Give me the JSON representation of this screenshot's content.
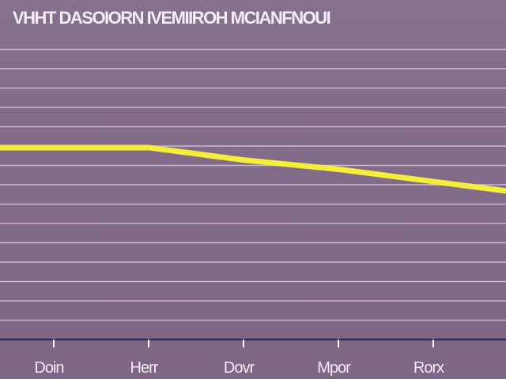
{
  "chart_data": {
    "type": "line",
    "title": "VHHT DASOIORN IVEMIIROH MCIANFNOUI",
    "xlabel": "",
    "ylabel": "",
    "categories": [
      "Doin",
      "Herr",
      "Dovr",
      "Mpor",
      "Rorx"
    ],
    "series": [
      {
        "values": [
          0.62,
          0.62,
          0.58,
          0.55,
          0.48
        ],
        "color": "#f2ee3a"
      }
    ],
    "ylim": [
      0,
      1
    ],
    "grid": true,
    "gridlines": 15,
    "colors": {
      "background": "#836b8a",
      "grid": "#d6cbd9",
      "axis": "#2d2a5e",
      "line": "#f2ee3a",
      "text": "#f4eef7"
    }
  }
}
